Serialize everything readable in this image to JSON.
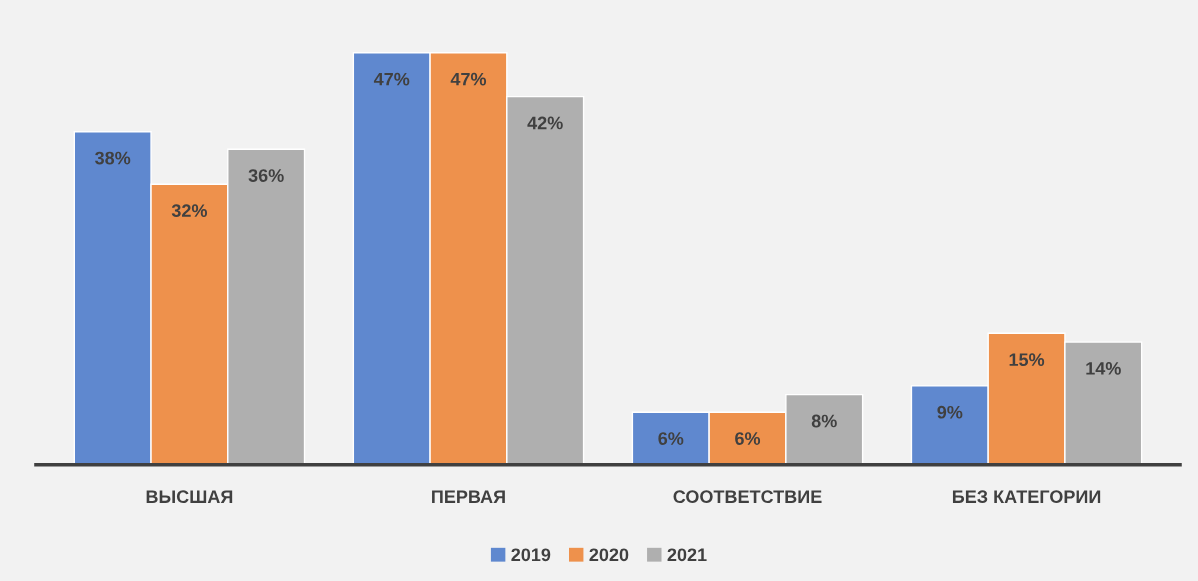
{
  "chart_data": {
    "type": "bar",
    "categories": [
      "ВЫСШАЯ",
      "ПЕРВАЯ",
      "СООТВЕТСТВИЕ",
      "БЕЗ КАТЕГОРИИ"
    ],
    "series": [
      {
        "name": "2019",
        "color": "#5f88cf",
        "values": [
          38,
          47,
          6,
          9
        ],
        "value_labels": [
          "38%",
          "47%",
          "6%",
          "9%"
        ]
      },
      {
        "name": "2020",
        "color": "#ee914c",
        "values": [
          32,
          47,
          6,
          15
        ],
        "value_labels": [
          "32%",
          "47%",
          "6%",
          "15%"
        ]
      },
      {
        "name": "2021",
        "color": "#afafaf",
        "values": [
          36,
          42,
          8,
          14
        ],
        "value_labels": [
          "36%",
          "42%",
          "8%",
          "14%"
        ]
      }
    ],
    "legend": "bottom"
  }
}
